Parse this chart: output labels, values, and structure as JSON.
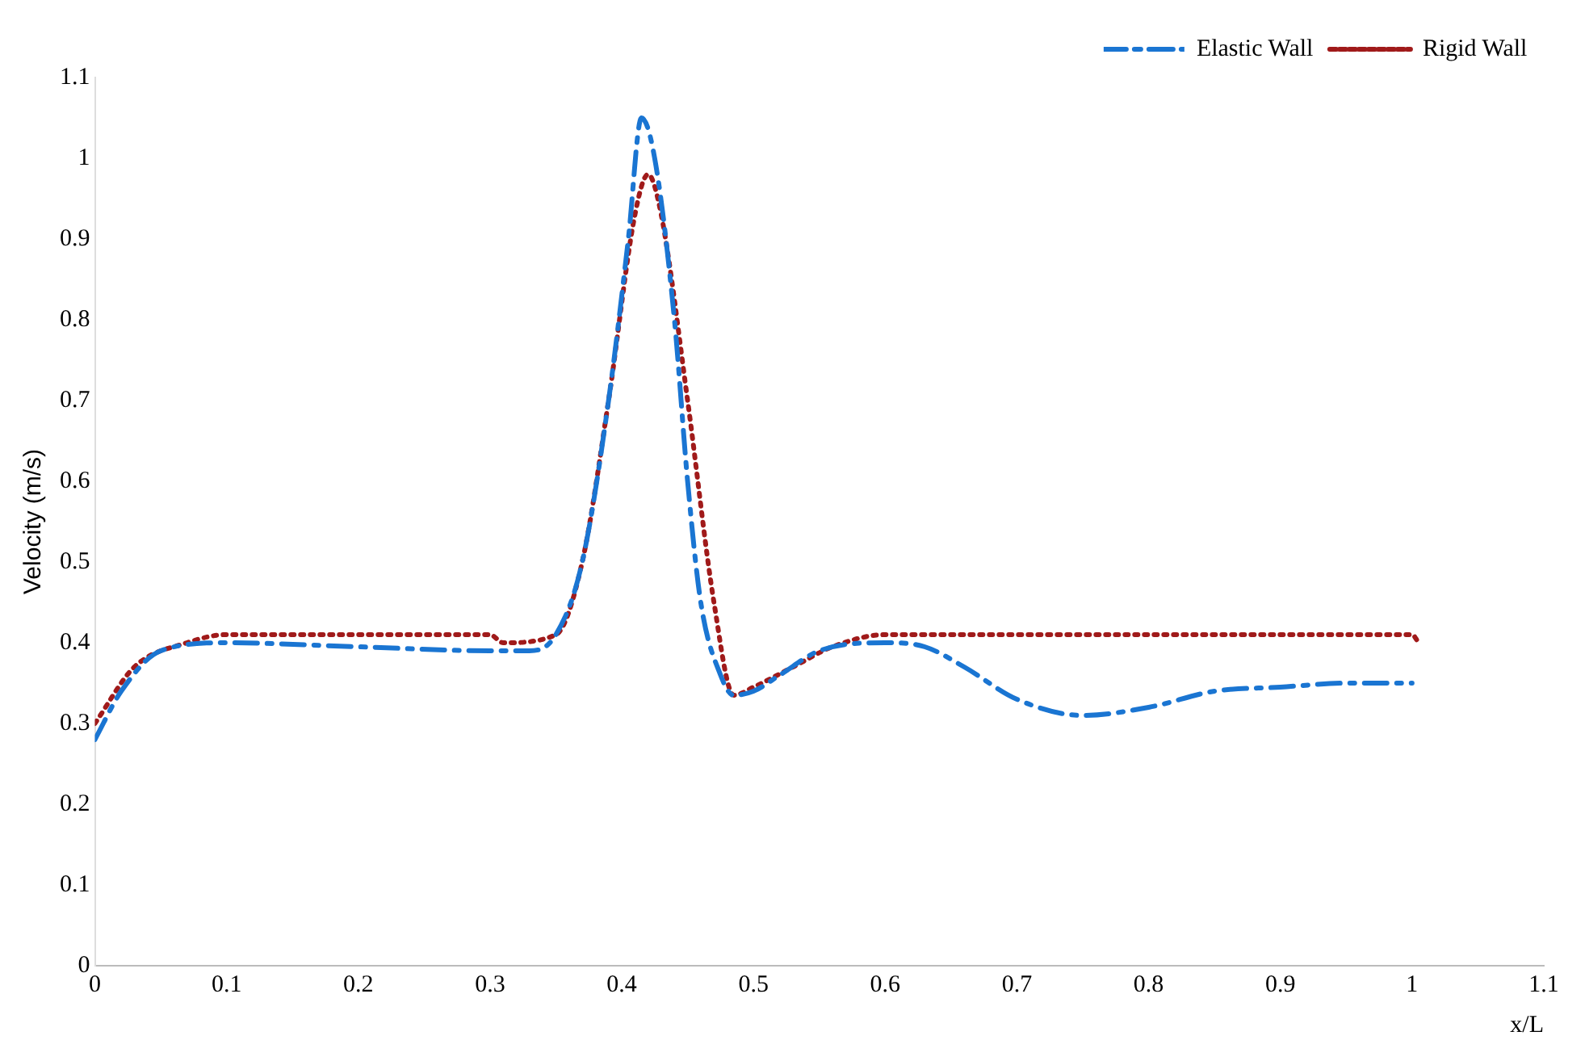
{
  "chart_data": {
    "type": "line",
    "xlabel": "x/L",
    "ylabel": "Velocity (m/s)",
    "xlim": [
      0,
      1.1
    ],
    "xticks": [
      0,
      0.1,
      0.2,
      0.3,
      0.4,
      0.5,
      0.6,
      0.7,
      0.8,
      0.9,
      1,
      1.1
    ],
    "ylim": [
      0,
      1.1
    ],
    "yticks": [
      0,
      0.1,
      0.2,
      0.3,
      0.4,
      0.5,
      0.6,
      0.7,
      0.8,
      0.9,
      1,
      1.1
    ],
    "grid": false,
    "legend": "top right",
    "marker": "none",
    "series": [
      {
        "name": "Elastic Wall",
        "color": "#1a75d2",
        "line_style": "dashed",
        "x": [
          0,
          0.02,
          0.05,
          0.1,
          0.2,
          0.3,
          0.33,
          0.35,
          0.37,
          0.39,
          0.405,
          0.415,
          0.425,
          0.44,
          0.45,
          0.46,
          0.475,
          0.485,
          0.5,
          0.52,
          0.55,
          0.6,
          0.63,
          0.66,
          0.7,
          0.75,
          0.8,
          0.85,
          0.9,
          0.95,
          1
        ],
        "values": [
          0.28,
          0.34,
          0.39,
          0.4,
          0.395,
          0.39,
          0.39,
          0.41,
          0.5,
          0.7,
          0.9,
          1.05,
          1,
          0.8,
          0.6,
          0.45,
          0.36,
          0.335,
          0.34,
          0.36,
          0.39,
          0.4,
          0.395,
          0.37,
          0.33,
          0.31,
          0.32,
          0.34,
          0.345,
          0.35,
          0.35
        ]
      },
      {
        "name": "Rigid Wall",
        "color": "#a01a1a",
        "line_style": "dotted",
        "x": [
          0,
          0.03,
          0.07,
          0.1,
          0.3,
          0.31,
          0.35,
          0.37,
          0.39,
          0.41,
          0.42,
          0.43,
          0.45,
          0.47,
          0.485,
          0.5,
          0.53,
          0.56,
          0.6,
          1,
          1.005
        ],
        "values": [
          0.3,
          0.37,
          0.4,
          0.41,
          0.41,
          0.4,
          0.41,
          0.5,
          0.7,
          0.93,
          0.98,
          0.93,
          0.7,
          0.45,
          0.335,
          0.345,
          0.37,
          0.395,
          0.41,
          0.41,
          0.4
        ]
      }
    ]
  }
}
